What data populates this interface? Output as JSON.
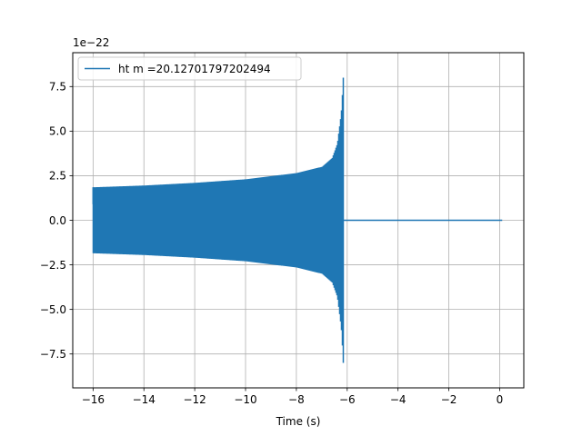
{
  "chart_data": {
    "type": "line",
    "title": "",
    "xlabel": "Time (s)",
    "ylabel": "",
    "y_scale_label": "1e−22",
    "xlim": [
      -16.8,
      0.95
    ],
    "ylim": [
      -9.4,
      9.4
    ],
    "x_ticks": [
      -16,
      -14,
      -12,
      -10,
      -8,
      -6,
      -4,
      -2,
      0
    ],
    "x_tick_labels": [
      "−16",
      "−14",
      "−12",
      "−10",
      "−8",
      "−6",
      "−4",
      "−2",
      "0"
    ],
    "y_ticks": [
      -7.5,
      -5.0,
      -2.5,
      0.0,
      2.5,
      5.0,
      7.5
    ],
    "y_tick_labels": [
      "−7.5",
      "−5.0",
      "−2.5",
      "0.0",
      "2.5",
      "5.0",
      "7.5"
    ],
    "grid": true,
    "legend_position": "top-left",
    "series": [
      {
        "name": "ht m =20.12701797202494",
        "color": "#1f77b4",
        "signal": {
          "start": -16.0,
          "merger": -6.15,
          "end": 0.1,
          "start_amplitude": 1.85,
          "peak_amplitude": 8.6
        },
        "envelope_x": [
          -16.0,
          -14.0,
          -12.0,
          -10.0,
          -8.0,
          -7.0,
          -6.6,
          -6.4,
          -6.25,
          -6.2,
          -6.15
        ],
        "envelope_y": [
          1.85,
          1.95,
          2.1,
          2.3,
          2.65,
          3.0,
          3.5,
          4.3,
          6.0,
          7.2,
          8.6
        ]
      }
    ]
  }
}
